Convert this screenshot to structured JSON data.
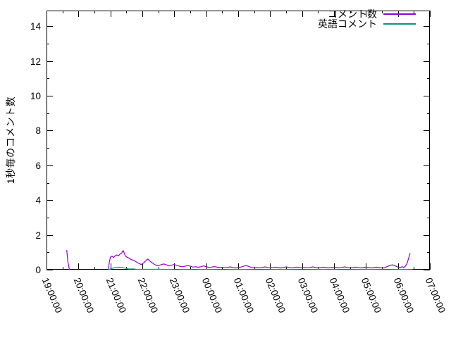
{
  "chart_data": {
    "type": "line",
    "title": "",
    "xlabel": "",
    "ylabel": "1秒毎のコメント数",
    "grid": false,
    "legend_position": "top-right-inside",
    "ylim": [
      0,
      14.9
    ],
    "xlim_minutes_from_19h": [
      0,
      720
    ],
    "yticks": {
      "values": [
        0,
        2,
        4,
        6,
        8,
        10,
        12,
        14
      ],
      "labels": [
        "0",
        "2",
        "4",
        "6",
        "8",
        "10",
        "12",
        "14"
      ],
      "minor_values": [
        1,
        3,
        5,
        7,
        9,
        11,
        13
      ]
    },
    "xticks": {
      "minutes": [
        0,
        60,
        120,
        180,
        240,
        300,
        360,
        420,
        480,
        540,
        600,
        660,
        720
      ],
      "labels": [
        "19:00:00",
        "20:00:00",
        "21:00:00",
        "22:00:00",
        "23:00:00",
        "00:00:00",
        "01:00:00",
        "02:00:00",
        "03:00:00",
        "04:00:00",
        "05:00:00",
        "06:00:00",
        "07:00:00"
      ],
      "minor_minutes": [
        30,
        90,
        150,
        210,
        270,
        330,
        390,
        450,
        510,
        570,
        630,
        690
      ]
    },
    "series": [
      {
        "name": "コメント数",
        "color": "#9400d3",
        "segments": [
          [
            [
              38,
              1.13
            ],
            [
              40,
              0.5
            ],
            [
              43,
              0
            ]
          ],
          [
            [
              116,
              0
            ],
            [
              118,
              0.45
            ],
            [
              120,
              0.72
            ],
            [
              123,
              0.78
            ],
            [
              126,
              0.7
            ],
            [
              129,
              0.8
            ],
            [
              132,
              0.85
            ],
            [
              135,
              0.8
            ],
            [
              138,
              0.9
            ],
            [
              141,
              0.95
            ],
            [
              144,
              1.1
            ],
            [
              146,
              0.95
            ],
            [
              148,
              0.8
            ],
            [
              151,
              0.72
            ],
            [
              154,
              0.68
            ],
            [
              158,
              0.6
            ],
            [
              162,
              0.55
            ],
            [
              166,
              0.5
            ],
            [
              170,
              0.42
            ],
            [
              174,
              0.35
            ],
            [
              178,
              0.3
            ],
            [
              182,
              0.38
            ],
            [
              186,
              0.5
            ],
            [
              190,
              0.62
            ],
            [
              194,
              0.5
            ],
            [
              198,
              0.4
            ],
            [
              202,
              0.32
            ],
            [
              206,
              0.26
            ],
            [
              210,
              0.24
            ],
            [
              215,
              0.28
            ],
            [
              220,
              0.33
            ],
            [
              225,
              0.28
            ],
            [
              230,
              0.22
            ],
            [
              235,
              0.26
            ],
            [
              240,
              0.3
            ],
            [
              245,
              0.24
            ],
            [
              250,
              0.2
            ],
            [
              255,
              0.17
            ],
            [
              260,
              0.2
            ],
            [
              265,
              0.24
            ],
            [
              270,
              0.2
            ],
            [
              275,
              0.15
            ],
            [
              280,
              0.17
            ],
            [
              285,
              0.14
            ],
            [
              290,
              0.17
            ],
            [
              295,
              0.22
            ],
            [
              300,
              0.17
            ],
            [
              305,
              0.13
            ],
            [
              310,
              0.15
            ],
            [
              315,
              0.18
            ],
            [
              320,
              0.15
            ],
            [
              325,
              0.12
            ],
            [
              330,
              0.14
            ],
            [
              335,
              0.11
            ],
            [
              340,
              0.13
            ],
            [
              345,
              0.16
            ],
            [
              350,
              0.13
            ],
            [
              355,
              0.1
            ],
            [
              360,
              0.12
            ],
            [
              365,
              0.15
            ],
            [
              370,
              0.2
            ],
            [
              375,
              0.24
            ],
            [
              380,
              0.18
            ],
            [
              385,
              0.13
            ],
            [
              390,
              0.1
            ],
            [
              395,
              0.12
            ],
            [
              400,
              0.1
            ],
            [
              405,
              0.13
            ],
            [
              410,
              0.16
            ],
            [
              415,
              0.13
            ],
            [
              420,
              0.1
            ],
            [
              425,
              0.12
            ],
            [
              430,
              0.15
            ],
            [
              435,
              0.12
            ],
            [
              440,
              0.1
            ],
            [
              445,
              0.13
            ],
            [
              450,
              0.16
            ],
            [
              455,
              0.13
            ],
            [
              460,
              0.1
            ],
            [
              465,
              0.12
            ],
            [
              470,
              0.15
            ],
            [
              475,
              0.12
            ],
            [
              480,
              0.1
            ],
            [
              485,
              0.13
            ],
            [
              490,
              0.11
            ],
            [
              495,
              0.13
            ],
            [
              500,
              0.16
            ],
            [
              505,
              0.13
            ],
            [
              510,
              0.1
            ],
            [
              515,
              0.12
            ],
            [
              520,
              0.15
            ],
            [
              525,
              0.12
            ],
            [
              530,
              0.1
            ],
            [
              535,
              0.12
            ],
            [
              540,
              0.15
            ],
            [
              545,
              0.12
            ],
            [
              550,
              0.1
            ],
            [
              555,
              0.13
            ],
            [
              560,
              0.16
            ],
            [
              565,
              0.13
            ],
            [
              570,
              0.1
            ],
            [
              575,
              0.12
            ],
            [
              580,
              0.15
            ],
            [
              585,
              0.13
            ],
            [
              590,
              0.1
            ],
            [
              595,
              0.12
            ],
            [
              600,
              0.15
            ],
            [
              605,
              0.13
            ],
            [
              610,
              0.1
            ],
            [
              615,
              0.12
            ],
            [
              620,
              0.14
            ],
            [
              625,
              0.12
            ],
            [
              630,
              0.1
            ],
            [
              635,
              0.12
            ],
            [
              640,
              0.18
            ],
            [
              645,
              0.25
            ],
            [
              650,
              0.28
            ],
            [
              655,
              0.22
            ],
            [
              660,
              0.15
            ],
            [
              665,
              0.12
            ],
            [
              668,
              0.18
            ],
            [
              671,
              0.12
            ],
            [
              674,
              0.2
            ],
            [
              677,
              0.35
            ],
            [
              680,
              0.65
            ],
            [
              683,
              0.95
            ]
          ]
        ]
      },
      {
        "name": "英語コメント",
        "color": "#009e73",
        "segments": [
          [
            [
              116,
              0
            ],
            [
              120,
              0.04
            ],
            [
              124,
              0.08
            ],
            [
              127,
              0.11
            ],
            [
              130,
              0.13
            ],
            [
              134,
              0.14
            ],
            [
              138,
              0.14
            ],
            [
              142,
              0.13
            ],
            [
              146,
              0.1
            ],
            [
              150,
              0.07
            ],
            [
              154,
              0.05
            ],
            [
              158,
              0.04
            ],
            [
              163,
              0.05
            ],
            [
              168,
              0.03
            ],
            [
              174,
              0.02
            ],
            [
              180,
              0.03
            ],
            [
              188,
              0.02
            ],
            [
              196,
              0.02
            ],
            [
              205,
              0.03
            ],
            [
              215,
              0.02
            ],
            [
              230,
              0.02
            ],
            [
              245,
              0.01
            ],
            [
              260,
              0.02
            ],
            [
              275,
              0.01
            ],
            [
              300,
              0.02
            ],
            [
              330,
              0.01
            ],
            [
              360,
              0.02
            ],
            [
              400,
              0.01
            ],
            [
              440,
              0.02
            ],
            [
              480,
              0.01
            ],
            [
              520,
              0.02
            ],
            [
              560,
              0.01
            ],
            [
              600,
              0.02
            ],
            [
              640,
              0.01
            ],
            [
              670,
              0.02
            ],
            [
              688,
              0.01
            ]
          ]
        ]
      }
    ]
  }
}
